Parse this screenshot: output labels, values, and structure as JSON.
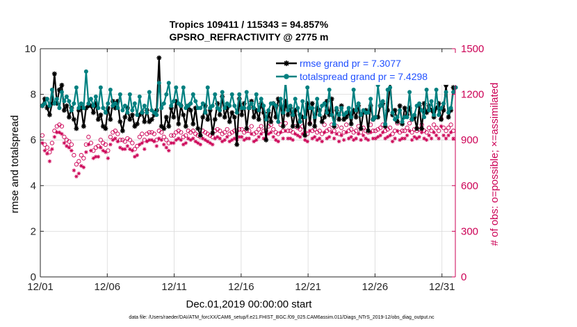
{
  "chart_data": {
    "type": "line",
    "title": "Tropics 109411 / 115343 = 94.857%",
    "subtitle": "GPSRO_REFRACTIVITY @ 2775 m",
    "xlabel": "Dec.01,2019 00:00:00 start",
    "ylabel_left": "rmse and totalspread",
    "ylabel_right": "# of obs: o=possible; ×=assimilated",
    "xlim": [
      0,
      31
    ],
    "ylim_left": [
      0,
      10
    ],
    "ylim_right": [
      0,
      1500
    ],
    "x_ticks": [
      0,
      5,
      10,
      15,
      20,
      25,
      30
    ],
    "x_tick_labels": [
      "12/01",
      "12/06",
      "12/11",
      "12/16",
      "12/21",
      "12/26",
      "12/31"
    ],
    "y_left_ticks": [
      0,
      2,
      4,
      6,
      8,
      10
    ],
    "y_left_tick_labels": [
      "0",
      "2",
      "4",
      "6",
      "8",
      "10"
    ],
    "y_right_ticks": [
      0,
      300,
      600,
      900,
      1200,
      1500
    ],
    "y_right_tick_labels": [
      "0",
      "300",
      "600",
      "900",
      "1200",
      "1500"
    ],
    "legend_position": "top-right",
    "series": [
      {
        "name": "rmse grand pr = 7.3077",
        "color": "#000000",
        "marker": "asterisk",
        "axis": "left",
        "values": [
          7.5,
          7.8,
          7.4,
          7.1,
          7.6,
          8.9,
          7.6,
          8.2,
          8.4,
          7.3,
          7.5,
          7.0,
          7.4,
          6.9,
          6.5,
          7.3,
          7.4,
          6.6,
          7.4,
          7.5,
          7.5,
          7.2,
          7.6,
          6.9,
          7.1,
          6.6,
          6.5,
          7.4,
          6.9,
          7.7,
          7.4,
          7.7,
          6.8,
          6.4,
          7.0,
          7.4,
          6.9,
          7.1,
          6.6,
          6.7,
          7.1,
          7.2,
          6.8,
          7.3,
          6.8,
          6.9,
          7.1,
          7.3,
          9.6,
          6.6,
          6.5,
          7.0,
          6.6,
          7.4,
          7.0,
          7.7,
          6.7,
          7.5,
          7.1,
          6.6,
          7.5,
          7.3,
          6.7,
          7.4,
          6.5,
          6.2,
          7.0,
          7.5,
          6.9,
          7.3,
          6.3,
          6.9,
          7.6,
          7.1,
          7.9,
          7.0,
          7.4,
          6.8,
          7.2,
          7.0,
          5.8,
          7.8,
          7.1,
          7.6,
          6.5,
          7.4,
          7.7,
          7.0,
          7.3,
          6.9,
          7.6,
          7.2,
          6.0,
          7.2,
          6.8,
          7.6,
          7.0,
          7.8,
          7.5,
          6.6,
          7.7,
          7.1,
          7.4,
          6.6,
          7.3,
          6.6,
          7.1,
          7.0,
          6.2,
          7.6,
          6.7,
          7.6,
          6.6,
          7.4,
          7.3,
          6.8,
          7.0,
          7.7,
          7.1,
          7.8,
          6.6,
          7.3,
          6.9,
          7.5,
          6.9,
          7.0,
          7.2,
          6.7,
          7.3,
          7.0,
          7.5,
          6.5,
          7.2,
          7.3,
          6.4,
          7.5,
          6.9,
          7.0,
          7.0,
          7.5,
          7.6,
          6.6,
          7.3,
          8.5,
          7.1,
          7.3,
          6.8,
          7.5,
          6.7,
          7.4,
          7.1,
          7.4,
          6.9,
          7.0,
          6.5,
          7.5,
          6.5,
          7.6,
          7.2,
          7.5,
          7.3,
          7.0,
          7.4,
          7.6,
          6.9,
          7.3,
          8.4,
          7.0,
          7.3,
          8.3
        ]
      },
      {
        "name": "totalspread grand pr = 7.4298",
        "color": "#008080",
        "marker": "circle",
        "axis": "left",
        "values": [
          7.5,
          7.6,
          7.8,
          7.5,
          8.2,
          7.6,
          7.8,
          7.4,
          8.1,
          7.7,
          7.9,
          7.7,
          7.3,
          7.6,
          8.3,
          7.4,
          7.6,
          7.4,
          9.0,
          7.6,
          7.8,
          7.5,
          7.9,
          7.4,
          8.3,
          7.4,
          7.2,
          7.6,
          8.2,
          7.5,
          7.6,
          7.4,
          8.0,
          7.3,
          7.5,
          7.2,
          8.0,
          7.3,
          7.6,
          7.1,
          7.9,
          7.2,
          7.5,
          7.2,
          8.1,
          7.3,
          7.2,
          7.1,
          8.5,
          7.4,
          7.6,
          8.0,
          8.5,
          7.5,
          7.7,
          8.3,
          7.6,
          7.5,
          8.3,
          7.4,
          7.5,
          7.6,
          8.0,
          7.7,
          7.4,
          7.4,
          7.6,
          7.2,
          8.3,
          7.4,
          7.5,
          8.0,
          7.4,
          7.3,
          8.1,
          7.4,
          7.6,
          7.5,
          8.0,
          7.5,
          7.2,
          8.0,
          7.4,
          7.4,
          8.1,
          7.4,
          7.6,
          7.4,
          8.0,
          7.3,
          7.8,
          7.5,
          6.9,
          7.3,
          7.6,
          7.6,
          7.5,
          6.8,
          7.8,
          7.2,
          8.6,
          7.3,
          7.5,
          7.1,
          7.8,
          7.4,
          6.8,
          7.7,
          7.0,
          8.3,
          7.4,
          7.4,
          7.0,
          7.8,
          7.1,
          7.5,
          7.6,
          7.2,
          8.2,
          7.1,
          6.7,
          7.4,
          7.1,
          7.4,
          7.1,
          7.2,
          7.4,
          7.0,
          8.2,
          7.3,
          7.6,
          7.1,
          7.3,
          7.2,
          7.2,
          7.8,
          6.9,
          7.0,
          8.4,
          7.5,
          7.7,
          6.7,
          8.2,
          8.3,
          7.2,
          6.9,
          7.0,
          7.3,
          6.8,
          7.0,
          7.0,
          8.1,
          6.9,
          7.1,
          7.5,
          7.6,
          7.3,
          7.0,
          8.2,
          7.3,
          7.7,
          7.1,
          8.2,
          7.1,
          7.4,
          7.6,
          8.1,
          7.2,
          7.4,
          8.1,
          8.3
        ]
      },
      {
        "name": "obs possible",
        "color": "#cc0055",
        "marker": "open-circle",
        "axis": "right",
        "values": [
          930,
          870,
          850,
          820,
          880,
          960,
          990,
          1000,
          990,
          920,
          900,
          890,
          870,
          800,
          740,
          760,
          800,
          780,
          870,
          920,
          880,
          830,
          850,
          860,
          900,
          880,
          870,
          830,
          920,
          950,
          960,
          940,
          900,
          900,
          890,
          910,
          900,
          880,
          840,
          860,
          920,
          940,
          900,
          940,
          950,
          950,
          940,
          900,
          960,
          950,
          920,
          900,
          880,
          930,
          930,
          950,
          960,
          950,
          920,
          930,
          960,
          950,
          960,
          940,
          930,
          920,
          960,
          950,
          940,
          930,
          920,
          960,
          970,
          960,
          940,
          950,
          970,
          940,
          950,
          960,
          960,
          970,
          970,
          950,
          960,
          960,
          990,
          940,
          950,
          970,
          990,
          960,
          960,
          990,
          1000,
          970,
          950,
          940,
          1000,
          960,
          1010,
          960,
          960,
          950,
          990,
          980,
          970,
          990,
          950,
          940,
          1010,
          960,
          970,
          950,
          960,
          940,
          1000,
          960,
          970,
          1000,
          960,
          990,
          940,
          980,
          950,
          1000,
          960,
          970,
          950,
          960,
          990,
          950,
          980,
          960,
          950,
          1000,
          960,
          960,
          970,
          980,
          1000,
          960,
          970,
          980,
          940,
          960,
          1010,
          950,
          960,
          960,
          980,
          1010,
          950,
          970,
          960,
          970,
          1000,
          960,
          950,
          980,
          960,
          1000,
          980,
          960,
          1040,
          980,
          960,
          980,
          1000,
          960
        ]
      },
      {
        "name": "obs assimilated",
        "color": "#cc0055",
        "marker": "asterisk",
        "axis": "right",
        "values": [
          880,
          830,
          810,
          760,
          840,
          920,
          950,
          950,
          940,
          880,
          860,
          850,
          830,
          700,
          660,
          680,
          730,
          720,
          820,
          870,
          830,
          780,
          790,
          790,
          850,
          830,
          820,
          780,
          870,
          900,
          910,
          890,
          850,
          840,
          840,
          860,
          840,
          830,
          790,
          800,
          870,
          880,
          840,
          890,
          900,
          900,
          890,
          860,
          910,
          900,
          870,
          850,
          830,
          880,
          880,
          900,
          910,
          900,
          870,
          880,
          910,
          900,
          910,
          890,
          880,
          870,
          910,
          900,
          890,
          880,
          870,
          910,
          920,
          910,
          890,
          900,
          920,
          890,
          900,
          910,
          900,
          920,
          920,
          900,
          910,
          910,
          940,
          890,
          900,
          920,
          940,
          910,
          910,
          940,
          950,
          920,
          900,
          890,
          950,
          910,
          960,
          910,
          910,
          900,
          940,
          930,
          920,
          940,
          900,
          890,
          960,
          910,
          920,
          900,
          910,
          890,
          950,
          910,
          920,
          950,
          910,
          940,
          890,
          930,
          900,
          950,
          910,
          920,
          900,
          910,
          940,
          900,
          930,
          910,
          900,
          950,
          910,
          910,
          920,
          930,
          950,
          910,
          920,
          930,
          890,
          910,
          960,
          900,
          910,
          910,
          930,
          960,
          900,
          920,
          910,
          920,
          950,
          910,
          900,
          930,
          910,
          950,
          930,
          910,
          990,
          930,
          910,
          930,
          950,
          910
        ]
      }
    ]
  },
  "footer": "data file: /Users/raeder/DAI/ATM_forcXX/CAM6_setup/f.e21.FHIST_BGC.f09_025.CAM6assim.011/Diags_NTrS_2019-12/obs_diag_output.nc"
}
